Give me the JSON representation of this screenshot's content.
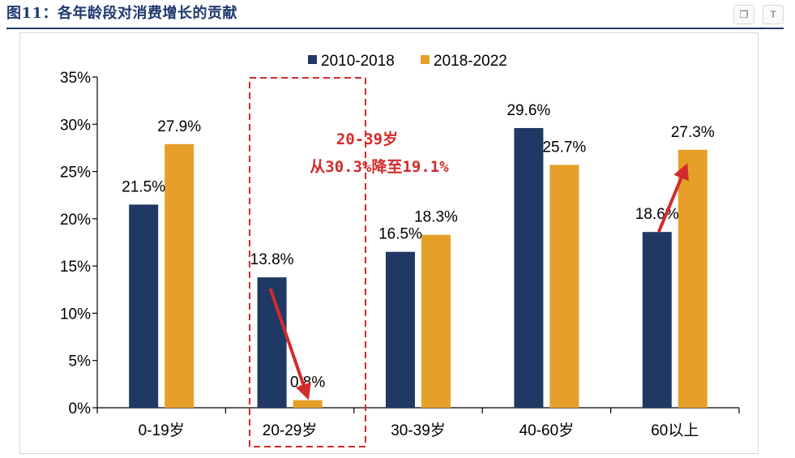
{
  "figure_title": "图11：各年龄段对消费增长的贡献",
  "toolbar": {
    "copy_icon": "copy-icon",
    "translate_icon": "translate-icon",
    "translate_label": "T"
  },
  "annotation": {
    "line1": "20-39岁",
    "line2": "从30.3%降至19.1%"
  },
  "colors": {
    "series1": "#1f3864",
    "series2": "#e6a02a",
    "annotation": "#d22b2b",
    "title": "#1f3a6e"
  },
  "chart_data": {
    "type": "bar",
    "categories": [
      "0-19岁",
      "20-29岁",
      "30-39岁",
      "40-60岁",
      "60以上"
    ],
    "series": [
      {
        "name": "2010-2018",
        "values": [
          21.5,
          13.8,
          16.5,
          29.6,
          18.6
        ]
      },
      {
        "name": "2018-2022",
        "values": [
          27.9,
          0.8,
          18.3,
          25.7,
          27.3
        ]
      }
    ],
    "data_labels": [
      [
        "21.5%",
        "13.8%",
        "16.5%",
        "29.6%",
        "18.6%"
      ],
      [
        "27.9%",
        "0.8%",
        "18.3%",
        "25.7%",
        "27.3%"
      ]
    ],
    "ylim": [
      0,
      35
    ],
    "yticks": [
      "0%",
      "5%",
      "10%",
      "15%",
      "20%",
      "25%",
      "30%",
      "35%"
    ],
    "legend_position": "top-center",
    "grid": false
  }
}
